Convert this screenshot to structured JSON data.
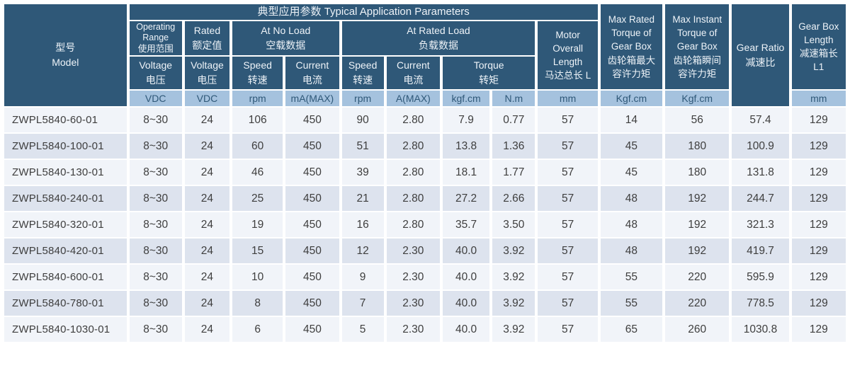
{
  "title": "典型应用参数  Typical Application Parameters",
  "headers": {
    "model": [
      "型号",
      "Model"
    ],
    "operating_range": [
      "Operating",
      "Range",
      "使用范围"
    ],
    "rated": [
      "Rated",
      "额定值"
    ],
    "at_no_load": [
      "At No Load",
      "空载数据"
    ],
    "at_rated_load": [
      "At Rated Load",
      "负载数据"
    ],
    "voltage": [
      "Voltage",
      "电压"
    ],
    "speed": [
      "Speed",
      "转速"
    ],
    "current": [
      "Current",
      "电流"
    ],
    "torque": [
      "Torque",
      "转矩"
    ],
    "motor_overall_length": [
      "Motor",
      "Overall",
      "Length",
      "马达总长 L"
    ],
    "max_rated_torque": [
      "Max Rated",
      "Torque of",
      "Gear Box",
      "齿轮箱最大",
      "容许力矩"
    ],
    "max_instant_torque": [
      "Max Instant",
      "Torque of",
      "Gear Box",
      "齿轮箱瞬间",
      "容许力矩"
    ],
    "gear_ratio": [
      "Gear Ratio",
      "减速比"
    ],
    "gear_box_length": [
      "Gear Box",
      "Length",
      "减速箱长",
      "L1"
    ]
  },
  "units": {
    "vdc": "VDC",
    "rpm": "rpm",
    "ma_max": "mA(MAX)",
    "a_max": "A(MAX)",
    "kgf_cm": "kgf.cm",
    "n_m": "N.m",
    "mm": "mm",
    "kgf_cm_cap": "Kgf.cm"
  },
  "rows": [
    [
      "ZWPL5840-60-01",
      "8~30",
      "24",
      "106",
      "450",
      "90",
      "2.80",
      "7.9",
      "0.77",
      "57",
      "14",
      "56",
      "57.4",
      "129"
    ],
    [
      "ZWPL5840-100-01",
      "8~30",
      "24",
      "60",
      "450",
      "51",
      "2.80",
      "13.8",
      "1.36",
      "57",
      "45",
      "180",
      "100.9",
      "129"
    ],
    [
      "ZWPL5840-130-01",
      "8~30",
      "24",
      "46",
      "450",
      "39",
      "2.80",
      "18.1",
      "1.77",
      "57",
      "45",
      "180",
      "131.8",
      "129"
    ],
    [
      "ZWPL5840-240-01",
      "8~30",
      "24",
      "25",
      "450",
      "21",
      "2.80",
      "27.2",
      "2.66",
      "57",
      "48",
      "192",
      "244.7",
      "129"
    ],
    [
      "ZWPL5840-320-01",
      "8~30",
      "24",
      "19",
      "450",
      "16",
      "2.80",
      "35.7",
      "3.50",
      "57",
      "48",
      "192",
      "321.3",
      "129"
    ],
    [
      "ZWPL5840-420-01",
      "8~30",
      "24",
      "15",
      "450",
      "12",
      "2.30",
      "40.0",
      "3.92",
      "57",
      "48",
      "192",
      "419.7",
      "129"
    ],
    [
      "ZWPL5840-600-01",
      "8~30",
      "24",
      "10",
      "450",
      "9",
      "2.30",
      "40.0",
      "3.92",
      "57",
      "55",
      "220",
      "595.9",
      "129"
    ],
    [
      "ZWPL5840-780-01",
      "8~30",
      "24",
      "8",
      "450",
      "7",
      "2.30",
      "40.0",
      "3.92",
      "57",
      "55",
      "220",
      "778.5",
      "129"
    ],
    [
      "ZWPL5840-1030-01",
      "8~30",
      "24",
      "6",
      "450",
      "5",
      "2.30",
      "40.0",
      "3.92",
      "57",
      "65",
      "260",
      "1030.8",
      "129"
    ]
  ],
  "colors": {
    "header_bg": "#2f5878",
    "header_text": "#eef3f8",
    "unit_bg": "#a5c2de",
    "unit_text": "#2f5878",
    "row_light": "#f1f4f9",
    "row_shaded": "#dde3ee",
    "data_text": "#3e3e3e",
    "separator": "#ffffff"
  }
}
